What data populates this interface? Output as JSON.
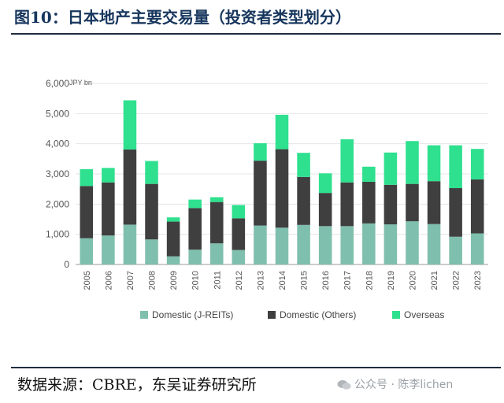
{
  "figure": {
    "title": "图10：日本地产主要交易量（投资者类型划分）",
    "source": "数据来源：CBRE，东吴证券研究所",
    "watermark": "公众号 · 陈李lichen"
  },
  "colors": {
    "domestic_jreits": "#7fbfad",
    "domestic_others": "#3f3f3f",
    "overseas": "#2fe08f",
    "axis_text": "#555555",
    "title": "#17365d"
  },
  "chart_data": {
    "type": "bar",
    "stacked": true,
    "title": "",
    "xlabel": "",
    "ylabel": "",
    "unit_label": "JPY bn",
    "ylim": [
      0,
      6000
    ],
    "yticks": [
      0,
      1000,
      2000,
      3000,
      4000,
      5000,
      6000
    ],
    "ytick_labels": [
      "0",
      "1,000",
      "2,000",
      "3,000",
      "4,000",
      "5,000",
      "6,000"
    ],
    "categories": [
      "2005",
      "2006",
      "2007",
      "2008",
      "2009",
      "2010",
      "2011",
      "2012",
      "2013",
      "2014",
      "2015",
      "2016",
      "2017",
      "2018",
      "2019",
      "2020",
      "2021",
      "2022",
      "2023"
    ],
    "series": [
      {
        "name": "Domestic (J-REITs)",
        "color_key": "domestic_jreits",
        "values": [
          870,
          960,
          1320,
          830,
          270,
          490,
          700,
          480,
          1290,
          1220,
          1310,
          1270,
          1270,
          1360,
          1330,
          1430,
          1340,
          920,
          1030
        ]
      },
      {
        "name": "Domestic (Others)",
        "color_key": "domestic_others",
        "values": [
          1730,
          1760,
          2490,
          1840,
          1150,
          1380,
          1370,
          1050,
          2150,
          2600,
          1590,
          1100,
          1450,
          1380,
          1310,
          1240,
          1420,
          1610,
          1790
        ]
      },
      {
        "name": "Overseas",
        "color_key": "overseas",
        "values": [
          560,
          480,
          1630,
          760,
          140,
          280,
          160,
          440,
          580,
          1140,
          800,
          650,
          1430,
          500,
          1070,
          1420,
          1190,
          1420,
          1010
        ]
      }
    ],
    "legend_position": "bottom"
  }
}
